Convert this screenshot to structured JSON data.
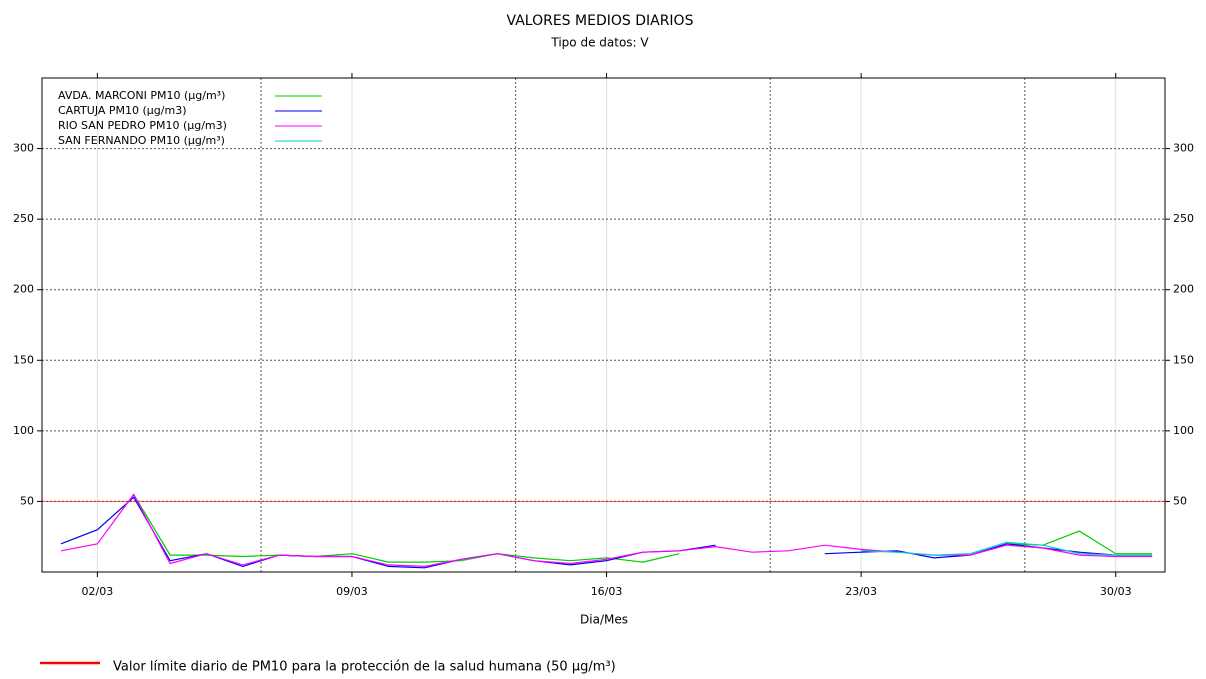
{
  "chart_data": {
    "type": "line",
    "title": "VALORES MEDIOS DIARIOS",
    "subtitle": "Tipo de datos: V",
    "x_label": "Dia/Mes",
    "categories": [
      null,
      "02/03",
      null,
      null,
      null,
      null,
      null,
      null,
      "09/03",
      null,
      null,
      null,
      null,
      null,
      null,
      "16/03",
      null,
      null,
      null,
      null,
      null,
      null,
      "23/03",
      null,
      null,
      null,
      null,
      null,
      null,
      "30/03",
      null
    ],
    "x_minor_grid": [
      5,
      12,
      19,
      26
    ],
    "ylim": [
      0,
      350
    ],
    "yticks": [
      50,
      100,
      150,
      200,
      250,
      300
    ],
    "grid": true,
    "legend": "top-left",
    "series": [
      {
        "name": "AVDA. MARCONI PM10 (µg/m³)",
        "color": "#00cc00",
        "values": [
          null,
          null,
          55,
          12,
          12,
          11,
          12,
          11,
          13,
          7,
          7,
          8,
          13,
          10,
          8,
          10,
          7,
          13,
          null,
          null,
          null,
          null,
          null,
          null,
          null,
          null,
          20,
          19,
          29,
          13,
          13
        ]
      },
      {
        "name": "CARTUJA PM10 (µg/m3)",
        "color": "#0000ee",
        "values": [
          20,
          30,
          53,
          8,
          13,
          4,
          12,
          11,
          11,
          4,
          3,
          9,
          13,
          8,
          5,
          8,
          14,
          15,
          19,
          null,
          null,
          13,
          14,
          15,
          10,
          12,
          20,
          17,
          14,
          12,
          12
        ]
      },
      {
        "name": "RIO SAN PEDRO PM10 (µg/m3)",
        "color": "#ff00ff",
        "values": [
          15,
          20,
          55,
          6,
          13,
          5,
          12,
          11,
          11,
          5,
          4,
          9,
          13,
          8,
          6,
          9,
          14,
          15,
          18,
          14,
          15,
          19,
          16,
          14,
          12,
          12,
          19,
          17,
          12,
          11,
          11
        ]
      },
      {
        "name": "SAN FERNANDO PM10 (µg/m³)",
        "color": "#00cccc",
        "values": [
          null,
          null,
          null,
          null,
          null,
          null,
          null,
          null,
          null,
          null,
          null,
          null,
          null,
          null,
          null,
          null,
          null,
          null,
          null,
          null,
          null,
          null,
          15,
          14,
          12,
          13,
          21,
          19,
          13,
          12,
          12
        ]
      }
    ],
    "threshold": 50,
    "threshold_color": "#ff0000",
    "threshold_label": "Valor límite diario de PM10  para la protección de la salud humana (50 µg/m³)"
  }
}
